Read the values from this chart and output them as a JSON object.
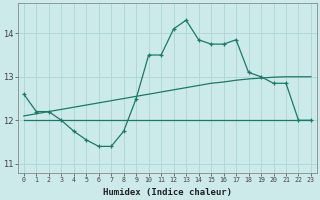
{
  "xlabel": "Humidex (Indice chaleur)",
  "x_values": [
    0,
    1,
    2,
    3,
    4,
    5,
    6,
    7,
    8,
    9,
    10,
    11,
    12,
    13,
    14,
    15,
    16,
    17,
    18,
    19,
    20,
    21,
    22,
    23
  ],
  "line1_y": [
    12.6,
    12.2,
    12.2,
    12.0,
    11.75,
    11.55,
    11.4,
    11.4,
    11.75,
    12.5,
    13.5,
    13.5,
    14.1,
    14.3,
    13.85,
    13.75,
    13.75,
    13.85,
    13.1,
    13.0,
    12.85,
    12.85,
    12.0,
    12.0
  ],
  "line2_y": [
    12.1,
    12.15,
    12.2,
    12.25,
    12.3,
    12.35,
    12.4,
    12.45,
    12.5,
    12.55,
    12.6,
    12.65,
    12.7,
    12.75,
    12.8,
    12.85,
    12.88,
    12.92,
    12.95,
    12.97,
    12.99,
    13.0,
    13.0,
    13.0
  ],
  "line3_y": [
    12.0,
    12.0,
    12.0,
    12.0,
    12.0,
    12.0,
    12.0,
    12.0,
    12.0,
    12.0,
    12.0,
    12.0,
    12.0,
    12.0,
    12.0,
    12.0,
    12.0,
    12.0,
    12.0,
    12.0,
    12.0,
    12.0,
    12.0,
    12.0
  ],
  "line_color": "#1a7a6a",
  "bg_color": "#cceaea",
  "grid_color": "#b0d8d8",
  "ylim": [
    10.8,
    14.7
  ],
  "yticks": [
    11,
    12,
    13,
    14
  ],
  "xlim": [
    -0.5,
    23.5
  ],
  "marker": "+"
}
